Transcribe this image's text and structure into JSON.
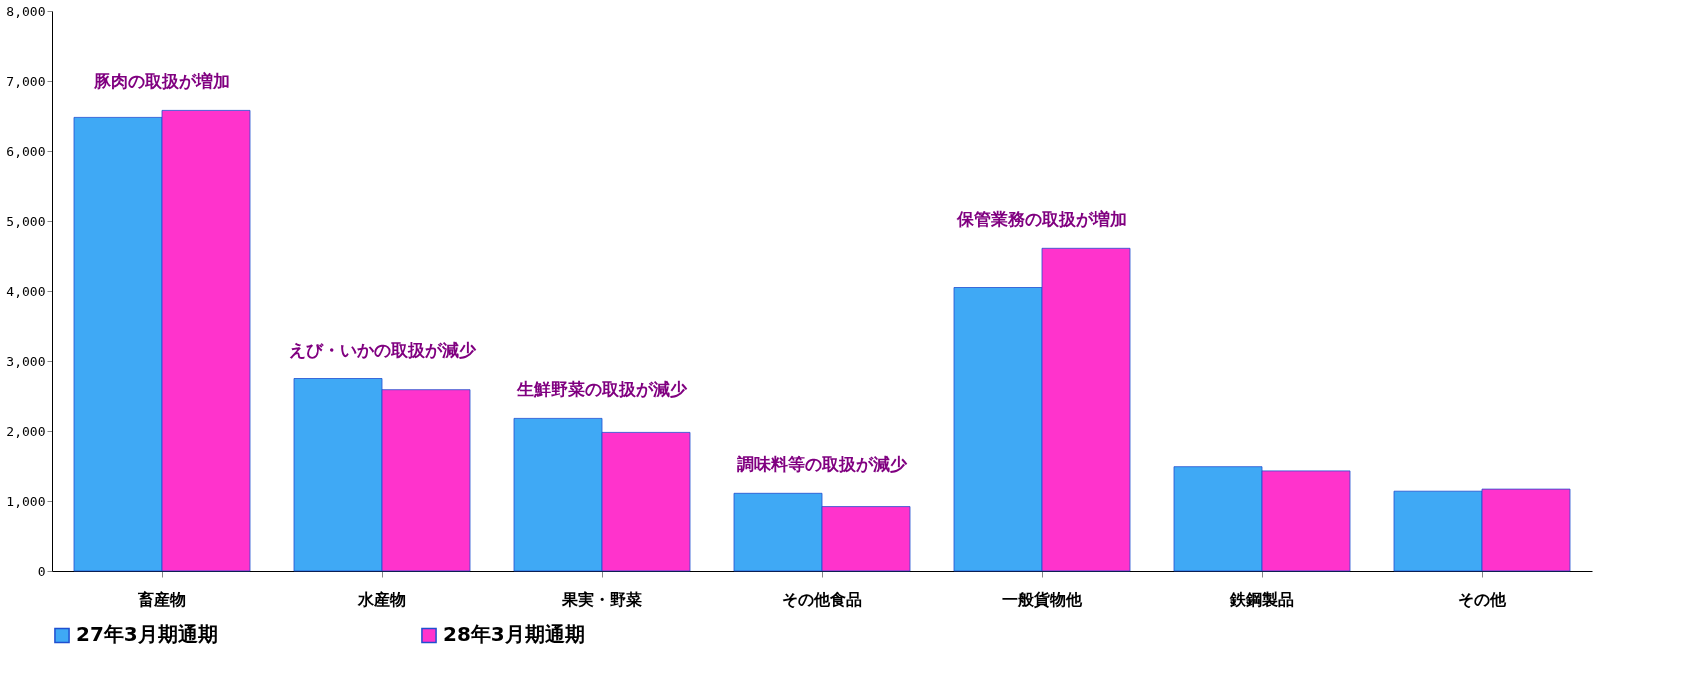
{
  "chart_data": {
    "type": "bar",
    "categories": [
      "畜産物",
      "水産物",
      "果実・野菜",
      "その他食品",
      "一般貨物他",
      "鉄鋼製品",
      "その他"
    ],
    "series": [
      {
        "name": "27年3月期通期",
        "color": "#3fa9f5",
        "values": [
          6480,
          2750,
          2180,
          1110,
          4050,
          1490,
          1140
        ]
      },
      {
        "name": "28年3月期通期",
        "color": "#ff33cc",
        "values": [
          6580,
          2590,
          1980,
          920,
          4610,
          1430,
          1170
        ]
      }
    ],
    "ylim": [
      0,
      8000
    ],
    "yticks": [
      0,
      {
        "value": 1000,
        "label": "1,000"
      },
      {
        "value": 2000,
        "label": "2,000"
      },
      {
        "value": 3000,
        "label": "3,000"
      },
      {
        "value": 4000,
        "label": "4,000"
      },
      {
        "value": 5000,
        "label": "5,000"
      },
      {
        "value": 6000,
        "label": "6,000"
      },
      {
        "value": 7000,
        "label": "7,000"
      },
      {
        "value": 8000,
        "label": "8,000"
      }
    ],
    "grid": false,
    "legend": "bottom",
    "annotations": [
      {
        "text": "豚肉の取扱が増加",
        "x": "畜産物",
        "y": 6580
      },
      {
        "text": "えび・いかの取扱が減少",
        "x": "水産物",
        "y": 2750
      },
      {
        "text": "生鮮野菜の取扱が減少",
        "x": "果実・野菜",
        "y": 2180
      },
      {
        "text": "調味料等の取扱が減少",
        "x": "その他食品",
        "y": 1110
      },
      {
        "text": "保管業務の取扱が増加",
        "x": "一般貨物他",
        "y": 4610
      }
    ]
  }
}
